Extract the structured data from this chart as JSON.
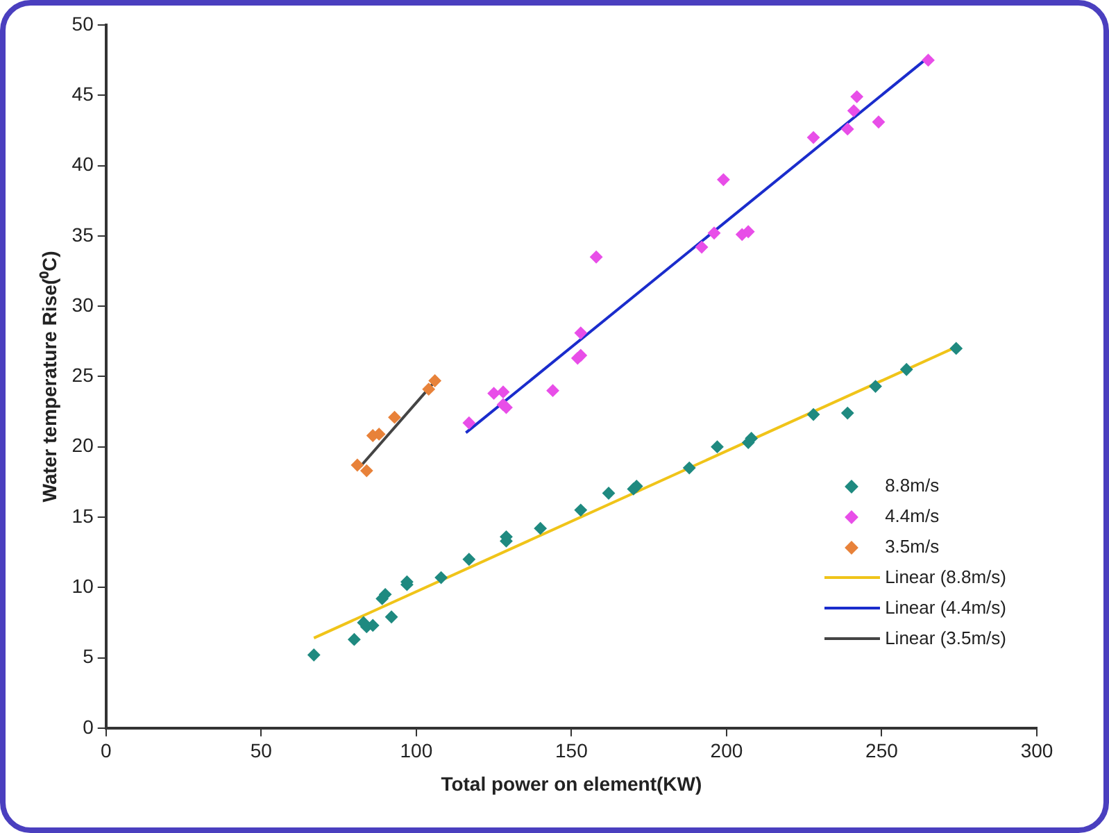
{
  "chart_data": {
    "type": "scatter",
    "xlabel": "Total power on element(KW)",
    "ylabel": "Water temperature Rise(⁰C)",
    "xlim": [
      0,
      300
    ],
    "xticks": [
      0,
      50,
      100,
      150,
      200,
      250,
      300
    ],
    "ylim": [
      0,
      50
    ],
    "yticks": [
      0,
      5,
      10,
      15,
      20,
      25,
      30,
      35,
      40,
      45,
      50
    ],
    "grid": false,
    "legend": "right",
    "series": [
      {
        "name": "8.8m/s",
        "type": "scatter",
        "marker": "diamond",
        "color": "#1f8a80",
        "x": [
          67,
          80,
          83,
          84,
          86,
          89,
          90,
          92,
          97,
          97,
          108,
          117,
          129,
          129,
          140,
          153,
          162,
          170,
          171,
          188,
          197,
          207,
          208,
          228,
          239,
          248,
          258,
          274
        ],
        "values": [
          5.2,
          6.3,
          7.5,
          7.2,
          7.3,
          9.2,
          9.5,
          7.9,
          10.2,
          10.4,
          10.7,
          12,
          13.3,
          13.6,
          14.2,
          15.5,
          16.7,
          17,
          17.2,
          18.5,
          20,
          20.3,
          20.6,
          22.3,
          22.4,
          24.3,
          25.5,
          27
        ]
      },
      {
        "name": "4.4m/s",
        "type": "scatter",
        "marker": "diamond",
        "color": "#e84ee8",
        "x": [
          117,
          125,
          128,
          128,
          129,
          144,
          152,
          153,
          153,
          158,
          192,
          196,
          199,
          205,
          207,
          228,
          239,
          241,
          242,
          249,
          265
        ],
        "values": [
          21.7,
          23.8,
          23.9,
          23,
          22.8,
          24,
          26.3,
          28.1,
          26.5,
          33.5,
          34.2,
          35.2,
          39,
          35.1,
          35.3,
          42,
          42.6,
          43.9,
          44.9,
          43.1,
          47.5
        ]
      },
      {
        "name": "3.5m/s",
        "type": "scatter",
        "marker": "diamond",
        "color": "#e8823a",
        "x": [
          81,
          84,
          86,
          88,
          93,
          104,
          106
        ],
        "values": [
          18.7,
          18.3,
          20.8,
          20.9,
          22.1,
          24.1,
          24.7
        ]
      },
      {
        "name": "Linear (8.8m/s)",
        "type": "line",
        "marker": "none",
        "color": "#f0c419",
        "x": [
          67,
          275
        ],
        "values": [
          6.4,
          27.2
        ]
      },
      {
        "name": "Linear (4.4m/s)",
        "type": "line",
        "marker": "none",
        "color": "#1a2ccc",
        "x": [
          116,
          265
        ],
        "values": [
          21,
          47.7
        ]
      },
      {
        "name": "Linear (3.5m/s)",
        "type": "line",
        "marker": "none",
        "color": "#444444",
        "x": [
          82,
          107
        ],
        "values": [
          18.6,
          24.9
        ]
      }
    ]
  }
}
